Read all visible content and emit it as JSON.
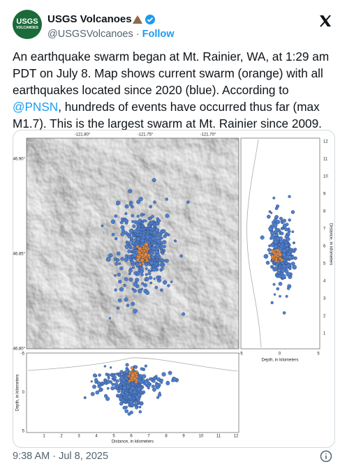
{
  "header": {
    "avatar_text": [
      "USGS",
      "VOLCANOES"
    ],
    "name": "USGS Volcanoes",
    "handle": "@USGSVolcanoes",
    "separator": "·",
    "follow": "Follow"
  },
  "post": {
    "text": [
      "An earthquake swarm began at Mt. Rainier, WA, at 1:29 am PDT on July 8. Map shows current swarm (orange) with all earthquakes located since 2020 (blue). According to ",
      "@PNSN",
      ", hundreds of events have occurred thus far (max M1.7). This is the largest swarm at Mt. Rainier since 2009."
    ]
  },
  "figure": {
    "map": {
      "lon_labels": [
        "-121.80°",
        "-121.75°",
        "-121.70°"
      ],
      "lat_labels": [
        "46.90°",
        "46.85°",
        "46.80°"
      ]
    },
    "side": {
      "y_ticks": [
        "1",
        "2",
        "3",
        "4",
        "5",
        "6",
        "7",
        "8",
        "9",
        "10",
        "11",
        "12"
      ],
      "x_ticks": [
        "-5",
        "0",
        "5"
      ],
      "x_label": "Depth, in kilometers",
      "y_label": "Distance, in kilometers"
    },
    "bottom": {
      "x_ticks": [
        "1",
        "2",
        "3",
        "4",
        "5",
        "6",
        "7",
        "8",
        "9",
        "10",
        "11",
        "12"
      ],
      "y_ticks": [
        "-5",
        "0",
        "5"
      ],
      "x_label": "Distance, in kilometers",
      "y_label": "Depth, in kilometers"
    }
  },
  "footer": {
    "timestamp": "9:38 AM · Jul 8, 2025"
  }
}
